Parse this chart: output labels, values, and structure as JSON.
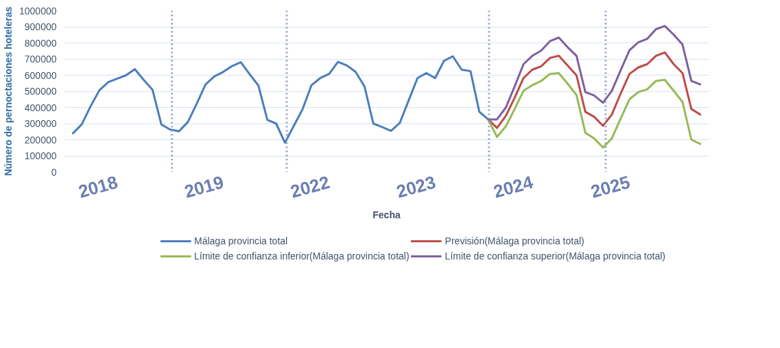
{
  "chart_data": {
    "type": "line",
    "xlabel": "Fecha",
    "ylabel": "Número de pernoctaciones hoteleras",
    "categories": [
      null,
      null,
      null,
      null,
      null,
      "2018",
      null,
      null,
      null,
      null,
      null,
      null,
      null,
      null,
      null,
      null,
      null,
      "2019",
      null,
      null,
      null,
      null,
      null,
      null,
      null,
      null,
      null,
      null,
      null,
      "2022",
      null,
      null,
      null,
      null,
      null,
      null,
      null,
      null,
      null,
      null,
      null,
      "2023",
      null,
      null,
      null,
      null,
      null,
      null,
      null,
      null,
      null,
      null,
      "2024",
      null,
      null,
      null,
      null,
      null,
      null,
      null,
      null,
      null,
      null,
      "2025",
      null,
      null,
      null,
      null,
      null,
      null,
      null,
      null
    ],
    "ylim": [
      0,
      1000000
    ],
    "yticks": [
      0,
      100000,
      200000,
      300000,
      400000,
      500000,
      600000,
      700000,
      800000,
      900000,
      1000000
    ],
    "grid": "y",
    "legend": "bottom",
    "line_style": "solid",
    "marker": "none",
    "series": [
      {
        "name": "Málaga provincia total",
        "color": "#4a7ebb",
        "values": [
          240000,
          295000,
          408000,
          507000,
          557000,
          578000,
          599000,
          637000,
          571000,
          510000,
          295000,
          263000,
          252000,
          309000,
          422000,
          542000,
          592000,
          620000,
          656000,
          680000,
          606000,
          535000,
          323000,
          300000,
          181000,
          286000,
          390000,
          538000,
          582000,
          608000,
          682000,
          660000,
          620000,
          530000,
          300000,
          278000,
          255000,
          304000,
          443000,
          582000,
          613000,
          582000,
          689000,
          717000,
          634000,
          625000,
          373000,
          326000,
          null,
          null,
          null,
          null,
          null,
          null,
          null,
          null,
          null,
          null,
          null,
          null,
          null,
          null,
          null,
          null,
          null,
          null,
          null,
          null,
          null,
          null,
          null,
          null
        ]
      },
      {
        "name": "Previsión(Málaga provincia total)",
        "color": "#be4b48",
        "values": [
          null,
          null,
          null,
          null,
          null,
          null,
          null,
          null,
          null,
          null,
          null,
          null,
          null,
          null,
          null,
          null,
          null,
          null,
          null,
          null,
          null,
          null,
          null,
          null,
          null,
          null,
          null,
          null,
          null,
          null,
          null,
          null,
          null,
          null,
          null,
          null,
          null,
          null,
          null,
          null,
          null,
          null,
          null,
          null,
          null,
          null,
          null,
          326000,
          273000,
          347000,
          460000,
          582000,
          634000,
          655000,
          707000,
          720000,
          660000,
          599000,
          373000,
          342000,
          286000,
          356000,
          486000,
          608000,
          648000,
          668000,
          720000,
          741000,
          668000,
          613000,
          391000,
          356000
        ]
      },
      {
        "name": "Límite de confianza inferior(Málaga provincia total)",
        "color": "#98b954",
        "values": [
          null,
          null,
          null,
          null,
          null,
          null,
          null,
          null,
          null,
          null,
          null,
          null,
          null,
          null,
          null,
          null,
          null,
          null,
          null,
          null,
          null,
          null,
          null,
          null,
          null,
          null,
          null,
          null,
          null,
          null,
          null,
          null,
          null,
          null,
          null,
          null,
          null,
          null,
          null,
          null,
          null,
          null,
          null,
          null,
          null,
          null,
          null,
          326000,
          217000,
          283000,
          390000,
          503000,
          538000,
          564000,
          608000,
          613000,
          547000,
          477000,
          243000,
          208000,
          151000,
          208000,
          330000,
          451000,
          495000,
          512000,
          564000,
          571000,
          503000,
          434000,
          200000,
          174000
        ]
      },
      {
        "name": "Límite de confianza superior(Málaga provincia total)",
        "color": "#7d60a0",
        "values": [
          null,
          null,
          null,
          null,
          null,
          null,
          null,
          null,
          null,
          null,
          null,
          null,
          null,
          null,
          null,
          null,
          null,
          null,
          null,
          null,
          null,
          null,
          null,
          null,
          null,
          null,
          null,
          null,
          null,
          null,
          null,
          null,
          null,
          null,
          null,
          null,
          null,
          null,
          null,
          null,
          null,
          null,
          null,
          null,
          null,
          null,
          null,
          326000,
          326000,
          399000,
          530000,
          668000,
          720000,
          752000,
          811000,
          833000,
          773000,
          720000,
          495000,
          474000,
          429000,
          503000,
          630000,
          755000,
          804000,
          825000,
          885000,
          905000,
          851000,
          790000,
          564000,
          543000
        ]
      }
    ]
  }
}
